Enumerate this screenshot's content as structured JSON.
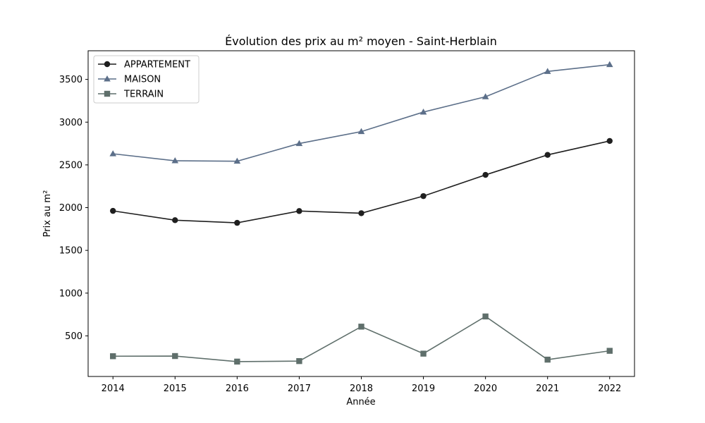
{
  "chart_data": {
    "type": "line",
    "title": "Évolution des prix au m² moyen - Saint-Herblain",
    "xlabel": "Année",
    "ylabel": "Prix au m²",
    "x": [
      2014,
      2015,
      2016,
      2017,
      2018,
      2019,
      2020,
      2021,
      2022
    ],
    "x_ticks": [
      "2014",
      "2015",
      "2016",
      "2017",
      "2018",
      "2019",
      "2020",
      "2021",
      "2022"
    ],
    "y_ticks": [
      500,
      1000,
      1500,
      2000,
      2500,
      3000,
      3500
    ],
    "xlim": [
      2013.6,
      2022.4
    ],
    "ylim": [
      25,
      3835
    ],
    "grid": false,
    "legend_position": "top-left",
    "series": [
      {
        "name": "APPARTEMENT",
        "marker": "circle",
        "color": "#1f1f1f",
        "values": [
          1962,
          1853,
          1822,
          1960,
          1935,
          2135,
          2383,
          2617,
          2780
        ]
      },
      {
        "name": "MAISON",
        "marker": "triangle",
        "color": "#5c6f89",
        "values": [
          2630,
          2548,
          2543,
          2750,
          2890,
          3118,
          3297,
          3593,
          3673
        ]
      },
      {
        "name": "TERRAIN",
        "marker": "square",
        "color": "#5f6f6b",
        "values": [
          262,
          264,
          199,
          205,
          608,
          292,
          727,
          222,
          325
        ]
      }
    ]
  }
}
